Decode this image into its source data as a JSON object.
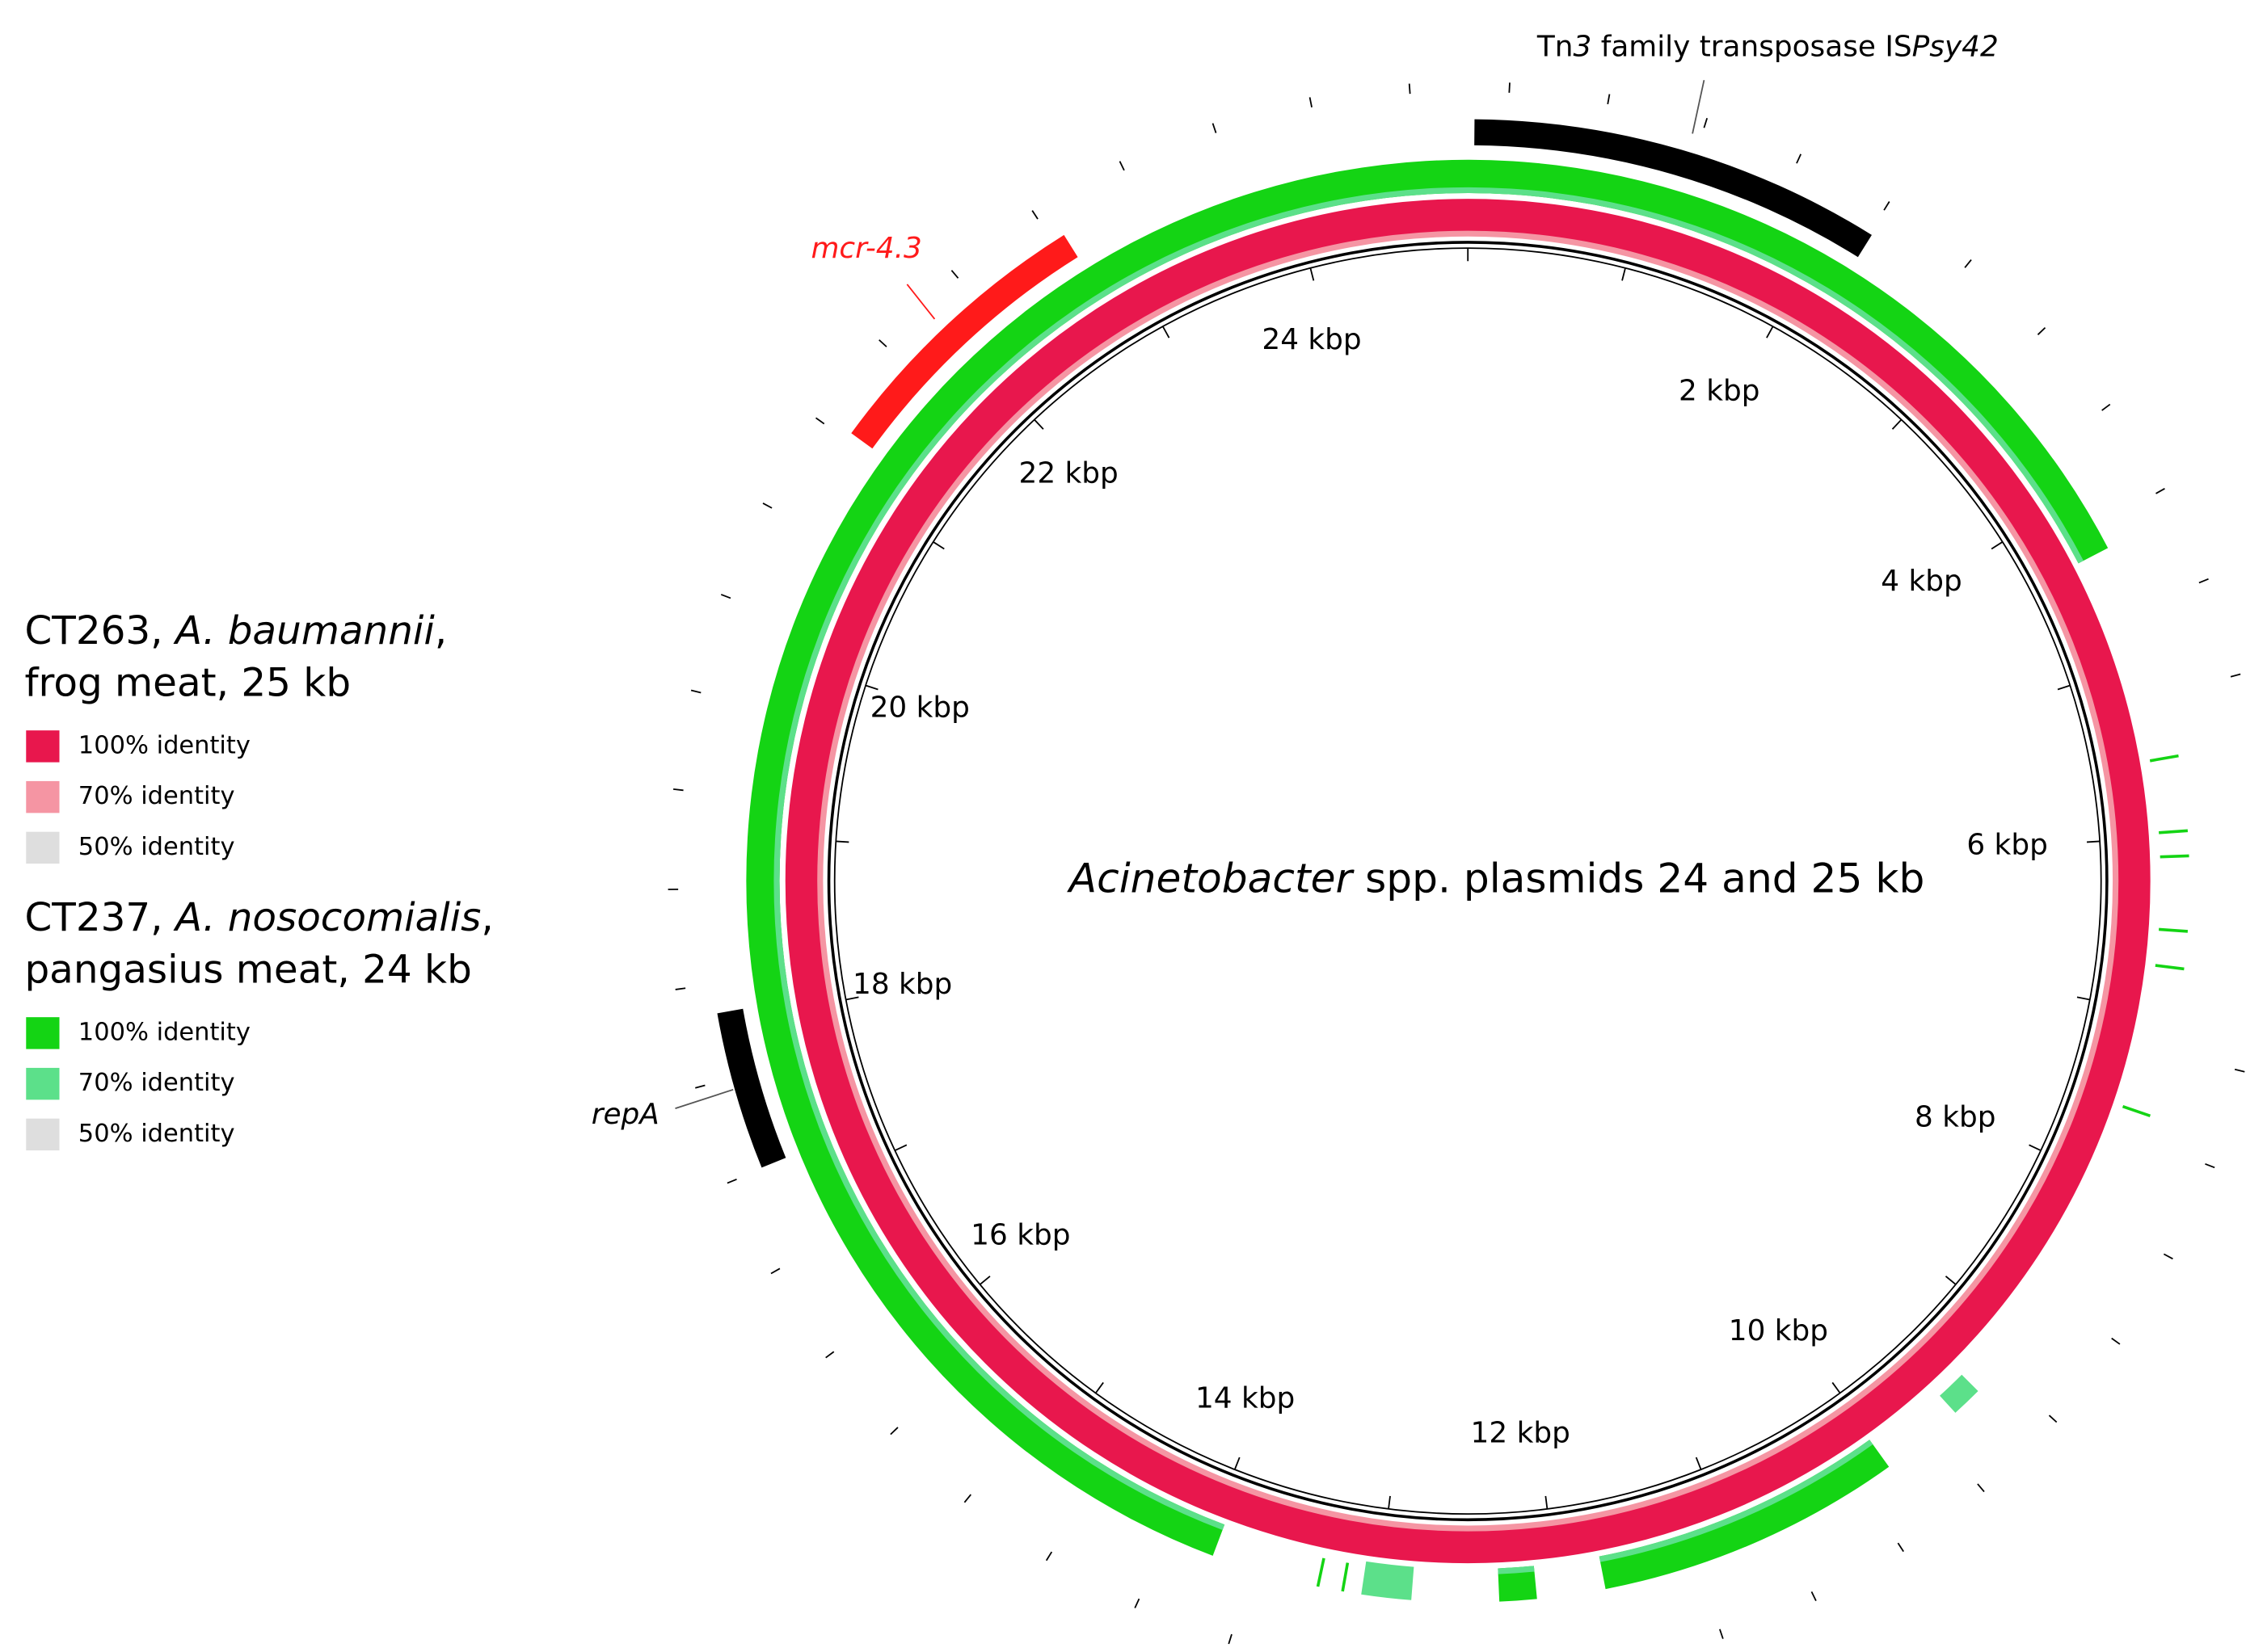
{
  "title": [
    {
      "text": "Acinetobacter",
      "italic": true
    },
    {
      "text": " spp. plasmids 24 and 25 kb"
    }
  ],
  "position_labels": [
    "2 kbp",
    "4 kbp",
    "6 kbp",
    "8 kbp",
    "10 kbp",
    "12 kbp",
    "14 kbp",
    "16 kbp",
    "18 kbp",
    "20 kbp",
    "22 kbp",
    "24 kbp"
  ],
  "features": [
    {
      "label": [
        {
          "text": "Tn"
        },
        {
          "text": "3",
          "italic": true
        },
        {
          "text": " family transposase IS"
        },
        {
          "text": "Psy42",
          "italic": true
        }
      ],
      "color": "#000000"
    },
    {
      "label": [
        {
          "text": "mcr-4.3",
          "italic": true
        }
      ],
      "color": "#ff1a1a"
    },
    {
      "label": [
        {
          "text": "repA",
          "italic": true
        }
      ],
      "color": "#000000"
    }
  ],
  "legend": [
    {
      "name": [
        [
          {
            "text": "CT263, "
          },
          {
            "text": "A. baumannii",
            "italic": true
          },
          {
            "text": ","
          }
        ],
        [
          {
            "text": "frog meat, 25 kb"
          }
        ]
      ],
      "entries": [
        {
          "label": "100% identity",
          "color": "#e8174d"
        },
        {
          "label": "70% identity",
          "color": "#f595a3"
        },
        {
          "label": "50% identity",
          "color": "#dedede"
        }
      ]
    },
    {
      "name": [
        [
          {
            "text": "CT237, "
          },
          {
            "text": "A. nosocomialis",
            "italic": true
          },
          {
            "text": ","
          }
        ],
        [
          {
            "text": "pangasius meat, 24 kb"
          }
        ]
      ],
      "entries": [
        {
          "label": "100% identity",
          "color": "#14d414"
        },
        {
          "label": "70% identity",
          "color": "#5ce08a"
        },
        {
          "label": "50% identity",
          "color": "#dedede"
        }
      ]
    }
  ]
}
